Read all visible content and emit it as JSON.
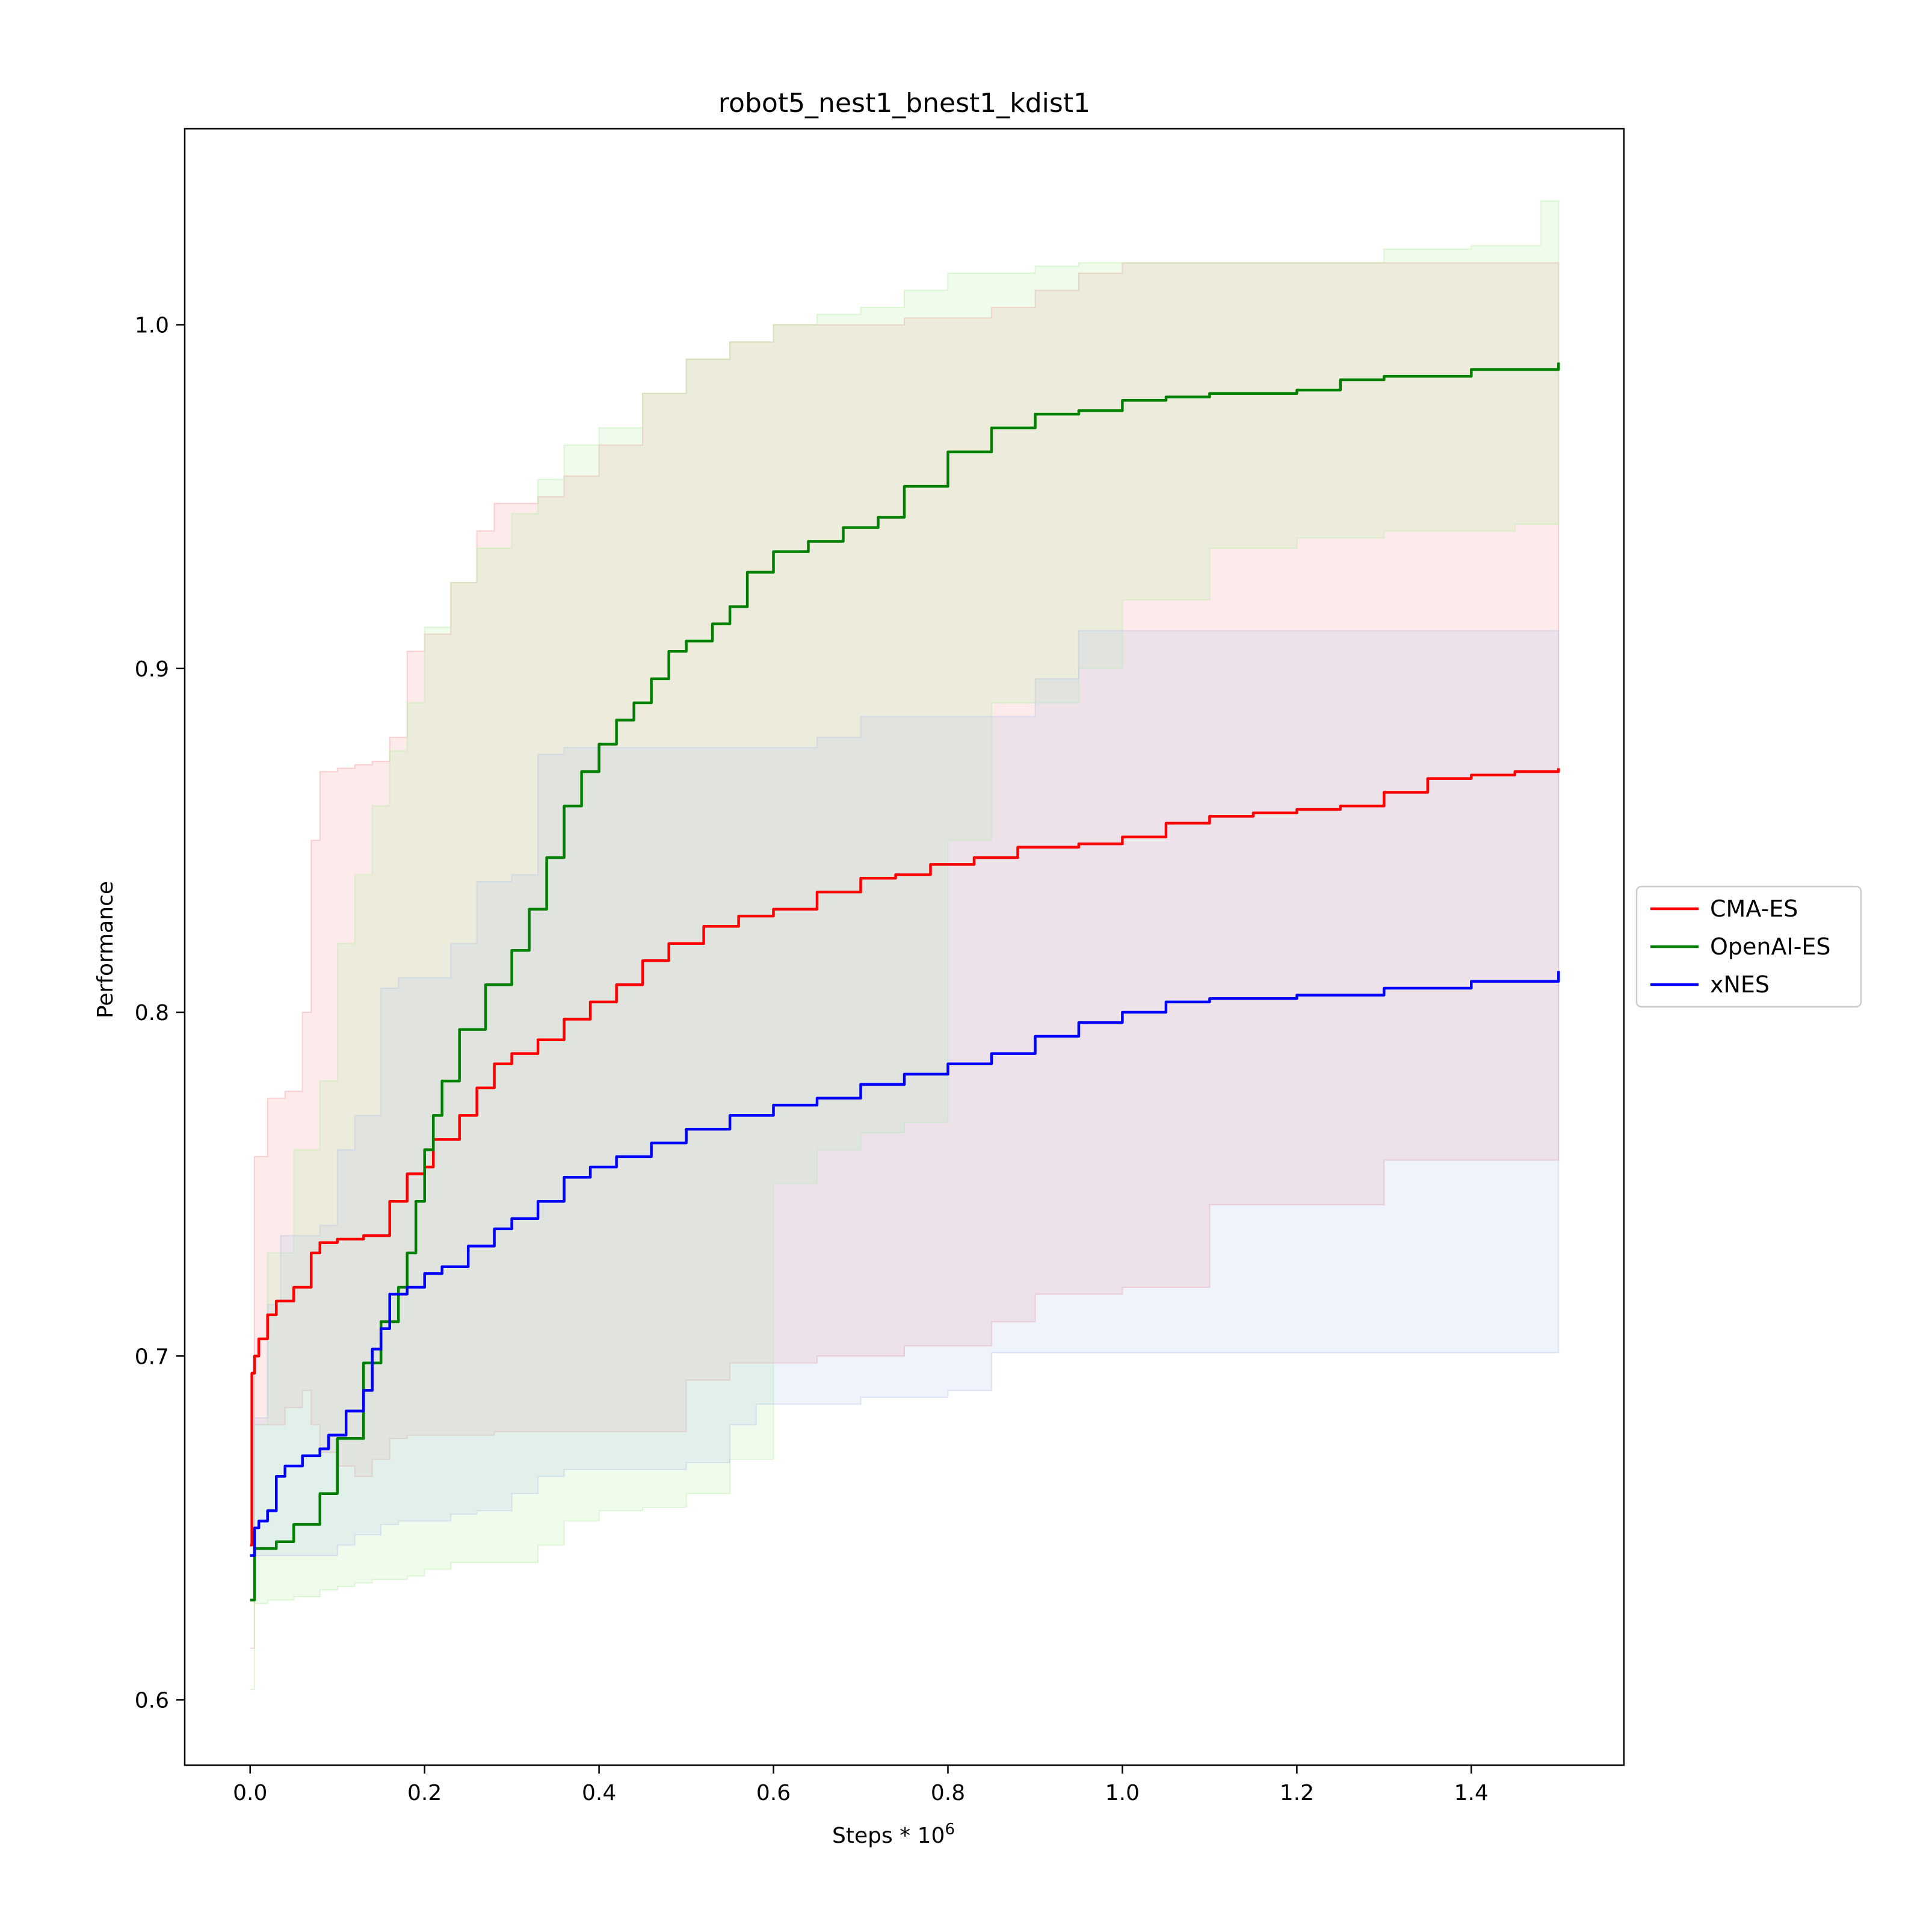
{
  "chart_data": {
    "type": "line",
    "title": "robot5_nest1_bnest1_kdist1",
    "xlabel": "Steps * 10",
    "xlabel_superscript": "6",
    "ylabel": "Performance",
    "xlim": [
      -0.075,
      1.575
    ],
    "ylim": [
      0.581,
      1.057
    ],
    "xticks": [
      "0.0",
      "0.2",
      "0.4",
      "0.6",
      "0.8",
      "1.0",
      "1.2",
      "1.4"
    ],
    "yticks": [
      "0.6",
      "0.7",
      "0.8",
      "0.9",
      "1.0"
    ],
    "grid": false,
    "legend_position": "right, outside plot",
    "series": [
      {
        "name": "CMA-ES",
        "color": "#ff0000",
        "band_color": "#f08080",
        "x": [
          0.0,
          0.002,
          0.005,
          0.01,
          0.02,
          0.03,
          0.05,
          0.07,
          0.08,
          0.1,
          0.13,
          0.16,
          0.18,
          0.2,
          0.21,
          0.24,
          0.26,
          0.28,
          0.3,
          0.33,
          0.36,
          0.39,
          0.42,
          0.45,
          0.48,
          0.52,
          0.56,
          0.6,
          0.65,
          0.7,
          0.74,
          0.78,
          0.83,
          0.88,
          0.95,
          1.0,
          1.05,
          1.1,
          1.15,
          1.2,
          1.25,
          1.3,
          1.35,
          1.4,
          1.45,
          1.5
        ],
        "y": [
          0.645,
          0.695,
          0.7,
          0.705,
          0.712,
          0.716,
          0.72,
          0.73,
          0.733,
          0.734,
          0.735,
          0.745,
          0.753,
          0.755,
          0.763,
          0.77,
          0.778,
          0.785,
          0.788,
          0.792,
          0.798,
          0.803,
          0.808,
          0.815,
          0.82,
          0.825,
          0.828,
          0.83,
          0.835,
          0.839,
          0.84,
          0.843,
          0.845,
          0.848,
          0.849,
          0.851,
          0.855,
          0.857,
          0.858,
          0.859,
          0.86,
          0.864,
          0.868,
          0.869,
          0.87,
          0.871
        ]
      },
      {
        "name": "OpenAI-ES",
        "color": "#008000",
        "band_color": "#90ee90",
        "x": [
          0.0,
          0.005,
          0.03,
          0.05,
          0.08,
          0.1,
          0.13,
          0.15,
          0.17,
          0.18,
          0.19,
          0.2,
          0.21,
          0.22,
          0.24,
          0.27,
          0.3,
          0.32,
          0.34,
          0.36,
          0.38,
          0.4,
          0.42,
          0.44,
          0.46,
          0.48,
          0.5,
          0.53,
          0.55,
          0.57,
          0.6,
          0.64,
          0.68,
          0.72,
          0.75,
          0.8,
          0.85,
          0.9,
          0.95,
          1.0,
          1.05,
          1.1,
          1.2,
          1.25,
          1.3,
          1.4,
          1.5
        ],
        "y": [
          0.629,
          0.644,
          0.646,
          0.651,
          0.66,
          0.676,
          0.698,
          0.71,
          0.72,
          0.73,
          0.745,
          0.76,
          0.77,
          0.78,
          0.795,
          0.808,
          0.818,
          0.83,
          0.845,
          0.86,
          0.87,
          0.878,
          0.885,
          0.89,
          0.897,
          0.905,
          0.908,
          0.913,
          0.918,
          0.928,
          0.934,
          0.937,
          0.941,
          0.944,
          0.953,
          0.963,
          0.97,
          0.974,
          0.975,
          0.978,
          0.979,
          0.98,
          0.981,
          0.984,
          0.985,
          0.987,
          0.989
        ]
      },
      {
        "name": "xNES",
        "color": "#0000ff",
        "band_color": "#9ab8e8",
        "x": [
          0.0,
          0.005,
          0.01,
          0.02,
          0.03,
          0.04,
          0.06,
          0.08,
          0.09,
          0.11,
          0.13,
          0.14,
          0.15,
          0.16,
          0.18,
          0.2,
          0.22,
          0.25,
          0.28,
          0.3,
          0.33,
          0.36,
          0.39,
          0.42,
          0.46,
          0.5,
          0.55,
          0.6,
          0.65,
          0.7,
          0.75,
          0.8,
          0.85,
          0.9,
          0.95,
          1.0,
          1.05,
          1.1,
          1.2,
          1.3,
          1.4,
          1.5
        ],
        "y": [
          0.642,
          0.65,
          0.652,
          0.655,
          0.665,
          0.668,
          0.671,
          0.673,
          0.677,
          0.684,
          0.69,
          0.702,
          0.708,
          0.718,
          0.72,
          0.724,
          0.726,
          0.732,
          0.737,
          0.74,
          0.745,
          0.752,
          0.755,
          0.758,
          0.762,
          0.766,
          0.77,
          0.773,
          0.775,
          0.779,
          0.782,
          0.785,
          0.788,
          0.793,
          0.797,
          0.8,
          0.803,
          0.804,
          0.805,
          0.807,
          0.809,
          0.812
        ]
      }
    ],
    "bands": [
      {
        "name": "CMA-ES",
        "color": "#f4a0a0",
        "x": [
          0.0,
          0.005,
          0.02,
          0.04,
          0.06,
          0.07,
          0.08,
          0.1,
          0.12,
          0.14,
          0.16,
          0.18,
          0.2,
          0.23,
          0.26,
          0.28,
          0.3,
          0.33,
          0.36,
          0.4,
          0.45,
          0.5,
          0.55,
          0.6,
          0.65,
          0.7,
          0.75,
          0.8,
          0.85,
          0.9,
          0.95,
          1.0,
          1.1,
          1.2,
          1.3,
          1.4,
          1.5
        ],
        "upper": [
          0.615,
          0.758,
          0.775,
          0.777,
          0.8,
          0.85,
          0.87,
          0.871,
          0.872,
          0.873,
          0.88,
          0.905,
          0.91,
          0.925,
          0.94,
          0.948,
          0.948,
          0.95,
          0.956,
          0.965,
          0.98,
          0.99,
          0.995,
          1.0,
          1.0,
          1.0,
          1.002,
          1.002,
          1.005,
          1.01,
          1.015,
          1.018,
          1.018,
          1.018,
          1.018,
          1.018,
          1.018
        ],
        "lower": [
          0.615,
          0.68,
          0.68,
          0.685,
          0.69,
          0.68,
          0.672,
          0.668,
          0.665,
          0.67,
          0.676,
          0.677,
          0.677,
          0.677,
          0.677,
          0.678,
          0.678,
          0.678,
          0.678,
          0.678,
          0.678,
          0.693,
          0.698,
          0.698,
          0.7,
          0.7,
          0.703,
          0.703,
          0.71,
          0.718,
          0.718,
          0.72,
          0.744,
          0.744,
          0.757,
          0.757,
          0.757
        ]
      },
      {
        "name": "OpenAI-ES",
        "color": "#b8f0a8",
        "x": [
          0.0,
          0.005,
          0.02,
          0.05,
          0.08,
          0.1,
          0.12,
          0.14,
          0.16,
          0.18,
          0.2,
          0.23,
          0.26,
          0.3,
          0.33,
          0.36,
          0.4,
          0.45,
          0.5,
          0.55,
          0.6,
          0.65,
          0.7,
          0.75,
          0.8,
          0.85,
          0.9,
          0.95,
          1.0,
          1.1,
          1.2,
          1.3,
          1.4,
          1.45,
          1.48,
          1.5
        ],
        "upper": [
          0.603,
          0.68,
          0.73,
          0.76,
          0.78,
          0.82,
          0.84,
          0.86,
          0.876,
          0.89,
          0.912,
          0.925,
          0.935,
          0.945,
          0.955,
          0.965,
          0.97,
          0.98,
          0.99,
          0.995,
          1.0,
          1.003,
          1.005,
          1.01,
          1.015,
          1.015,
          1.017,
          1.018,
          1.018,
          1.018,
          1.018,
          1.022,
          1.023,
          1.023,
          1.036,
          1.036
        ],
        "lower": [
          0.603,
          0.628,
          0.629,
          0.63,
          0.632,
          0.633,
          0.634,
          0.635,
          0.635,
          0.636,
          0.638,
          0.64,
          0.64,
          0.64,
          0.645,
          0.652,
          0.655,
          0.656,
          0.66,
          0.67,
          0.75,
          0.76,
          0.765,
          0.768,
          0.85,
          0.89,
          0.89,
          0.9,
          0.92,
          0.935,
          0.938,
          0.94,
          0.94,
          0.942,
          0.942,
          0.942
        ]
      },
      {
        "name": "xNES",
        "color": "#b8c8ec",
        "x": [
          0.0,
          0.005,
          0.02,
          0.035,
          0.05,
          0.08,
          0.1,
          0.12,
          0.15,
          0.17,
          0.2,
          0.23,
          0.26,
          0.3,
          0.33,
          0.36,
          0.4,
          0.45,
          0.5,
          0.55,
          0.58,
          0.62,
          0.65,
          0.7,
          0.75,
          0.8,
          0.85,
          0.9,
          0.95,
          1.0,
          1.1,
          1.2,
          1.3,
          1.4,
          1.5
        ],
        "upper": [
          0.642,
          0.682,
          0.715,
          0.735,
          0.735,
          0.738,
          0.76,
          0.77,
          0.807,
          0.81,
          0.81,
          0.82,
          0.838,
          0.84,
          0.875,
          0.877,
          0.877,
          0.877,
          0.877,
          0.877,
          0.877,
          0.877,
          0.88,
          0.886,
          0.886,
          0.886,
          0.886,
          0.897,
          0.911,
          0.911,
          0.911,
          0.911,
          0.911,
          0.911,
          0.911
        ],
        "lower": [
          0.642,
          0.642,
          0.642,
          0.642,
          0.642,
          0.642,
          0.645,
          0.648,
          0.651,
          0.652,
          0.652,
          0.654,
          0.655,
          0.66,
          0.665,
          0.667,
          0.667,
          0.667,
          0.669,
          0.68,
          0.686,
          0.686,
          0.686,
          0.688,
          0.688,
          0.69,
          0.701,
          0.701,
          0.701,
          0.701,
          0.701,
          0.701,
          0.701,
          0.701,
          0.701
        ]
      }
    ]
  }
}
